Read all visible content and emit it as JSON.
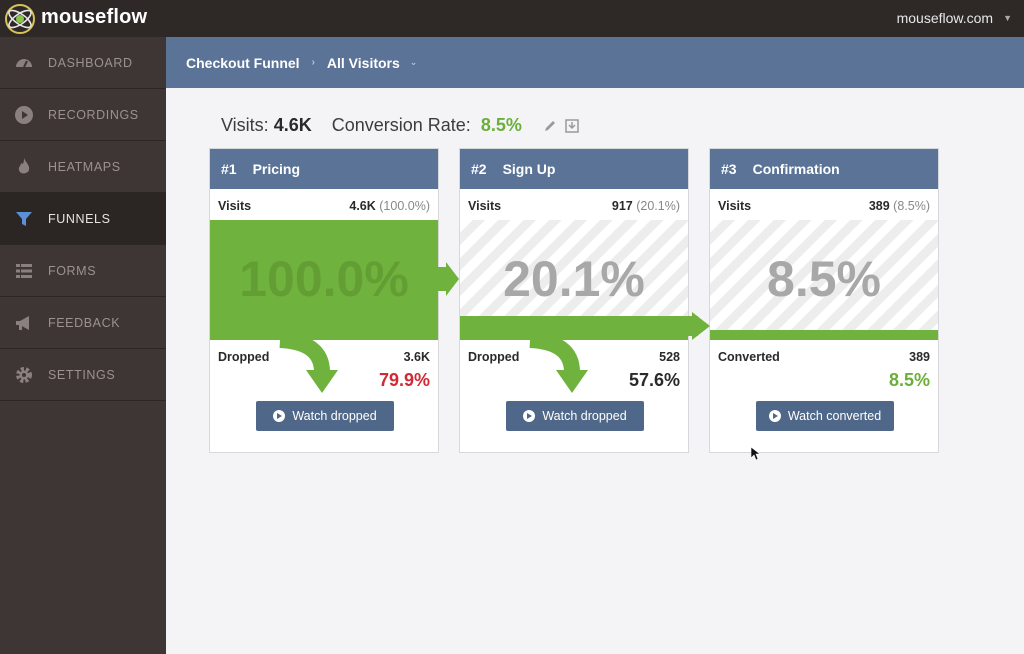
{
  "app": {
    "brand": "mouseflow",
    "site": "mouseflow.com"
  },
  "sidebar": {
    "items": [
      {
        "label": "DASHBOARD",
        "icon": "dashboard-gauge-icon",
        "active": false
      },
      {
        "label": "RECORDINGS",
        "icon": "play-circle-icon",
        "active": false
      },
      {
        "label": "HEATMAPS",
        "icon": "flame-icon",
        "active": false
      },
      {
        "label": "FUNNELS",
        "icon": "funnel-icon",
        "active": true
      },
      {
        "label": "FORMS",
        "icon": "form-list-icon",
        "active": false
      },
      {
        "label": "FEEDBACK",
        "icon": "megaphone-icon",
        "active": false
      },
      {
        "label": "SETTINGS",
        "icon": "gear-icon",
        "active": false
      }
    ]
  },
  "header": {
    "funnel": "Checkout Funnel",
    "segment": "All Visitors"
  },
  "summary": {
    "visits_label": "Visits:",
    "visits_value": "4.6K",
    "conversion_label": "Conversion Rate:",
    "conversion_value": "8.5%"
  },
  "steps": [
    {
      "num": "#1",
      "name": "Pricing",
      "visits_label": "Visits",
      "visits_value": "4.6K",
      "visits_pct": "(100.0%)",
      "big_pct": "100.0%",
      "fill": 1.0,
      "bottom_label": "Dropped",
      "bottom_count": "3.6K",
      "bottom_pct": "79.9%",
      "button": "Watch dropped"
    },
    {
      "num": "#2",
      "name": "Sign Up",
      "visits_label": "Visits",
      "visits_value": "917",
      "visits_pct": "(20.1%)",
      "big_pct": "20.1%",
      "fill": 0.201,
      "bottom_label": "Dropped",
      "bottom_count": "528",
      "bottom_pct": "57.6%",
      "button": "Watch dropped"
    },
    {
      "num": "#3",
      "name": "Confirmation",
      "visits_label": "Visits",
      "visits_value": "389",
      "visits_pct": "(8.5%)",
      "big_pct": "8.5%",
      "fill": 0.085,
      "bottom_label": "Converted",
      "bottom_count": "389",
      "bottom_pct": "8.5%",
      "button": "Watch converted"
    }
  ],
  "colors": {
    "header_blue": "#5b7396",
    "funnel_green": "#6fb23e",
    "drop_red": "#d02a36",
    "conversion_green": "#6cae3a"
  }
}
